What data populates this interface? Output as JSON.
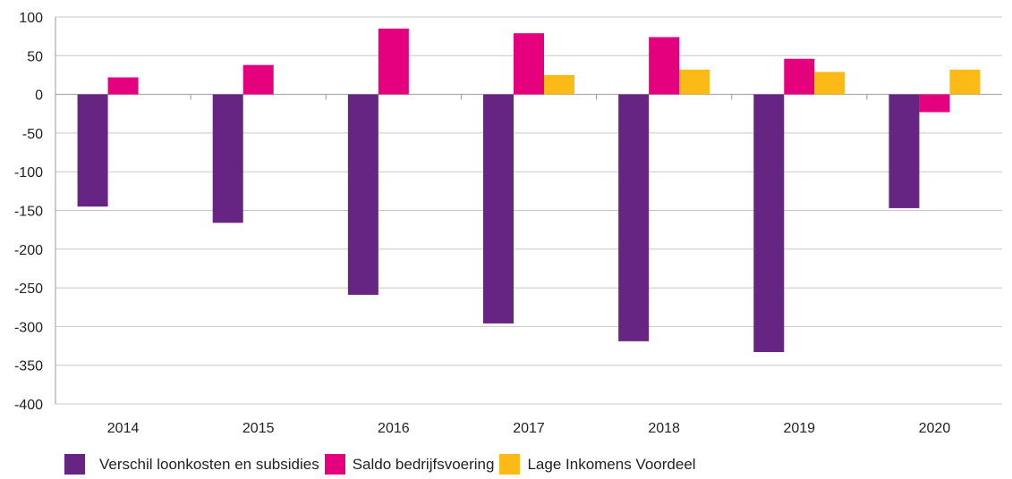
{
  "chart_data": {
    "type": "bar",
    "categories": [
      "2014",
      "2015",
      "2016",
      "2017",
      "2018",
      "2019",
      "2020"
    ],
    "series": [
      {
        "name": "Verschil loonkosten en subsidies",
        "color": "#662582",
        "values": [
          -145,
          -166,
          -259,
          -296,
          -319,
          -333,
          -147
        ]
      },
      {
        "name": "Saldo bedrijfsvoering",
        "color": "#e5007d",
        "values": [
          22,
          38,
          85,
          79,
          74,
          46,
          -23
        ]
      },
      {
        "name": "Lage Inkomens Voordeel",
        "color": "#fbba16",
        "values": [
          null,
          null,
          null,
          25,
          32,
          29,
          32
        ]
      }
    ],
    "y_ticks": [
      "100",
      "50",
      "0",
      "-50",
      "-100",
      "-150",
      "-200",
      "-250",
      "-300",
      "-350",
      "-400"
    ],
    "ylim": [
      -400,
      100
    ],
    "grid": true,
    "legend_position": "bottom-left",
    "title": "",
    "xlabel": "",
    "ylabel": ""
  }
}
